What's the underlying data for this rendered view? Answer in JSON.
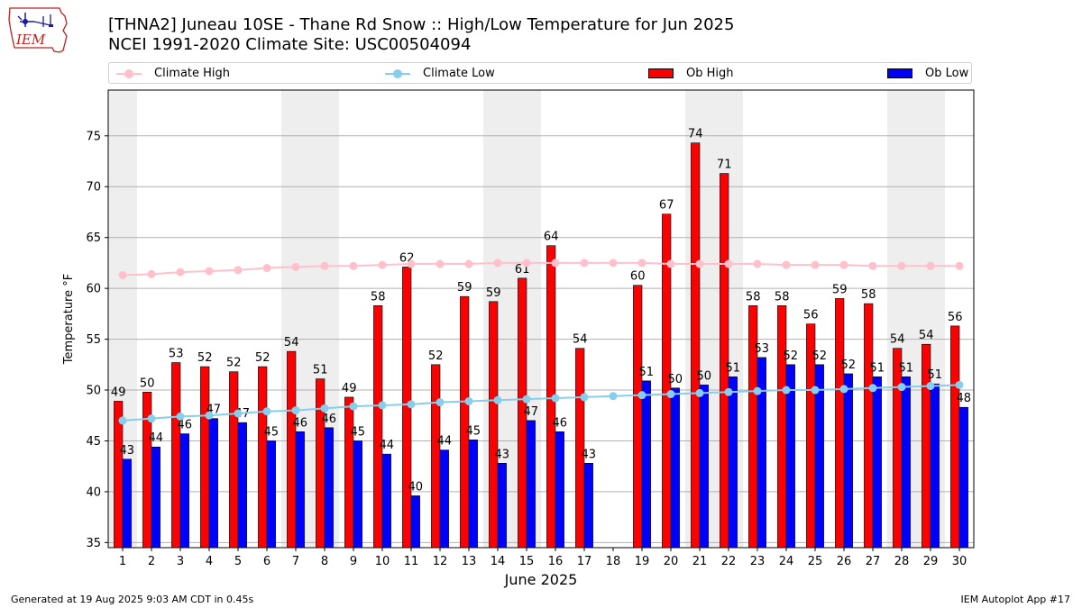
{
  "logo": {
    "text": "IEM"
  },
  "header": {
    "title_line1": "[THNA2] Juneau 10SE - Thane Rd Snow :: High/Low Temperature for Jun 2025",
    "title_line2": "NCEI 1991-2020 Climate Site: USC00504094"
  },
  "legend": {
    "climate_high": "Climate High",
    "climate_low": "Climate Low",
    "ob_high": "Ob High",
    "ob_low": "Ob Low"
  },
  "colors": {
    "ob_high": "#ff0000",
    "ob_low": "#0000ff",
    "climate_high": "#ffc0cb",
    "climate_low": "#87ceeb",
    "weekend_shade": "#eeeeee",
    "grid": "#b0b0b0"
  },
  "chart_data": {
    "type": "bar",
    "xlabel": "June 2025",
    "ylabel": "Temperature °F",
    "ylim": [
      34.5,
      79.5
    ],
    "yticks": [
      35,
      40,
      45,
      50,
      55,
      60,
      65,
      70,
      75
    ],
    "grid": true,
    "legend_position": "top",
    "categories": [
      "1",
      "2",
      "3",
      "4",
      "5",
      "6",
      "7",
      "8",
      "9",
      "10",
      "11",
      "12",
      "13",
      "14",
      "15",
      "16",
      "17",
      "18",
      "19",
      "20",
      "21",
      "22",
      "23",
      "24",
      "25",
      "26",
      "27",
      "28",
      "29",
      "30"
    ],
    "shaded_days": [
      1,
      7,
      8,
      14,
      15,
      21,
      22,
      28,
      29
    ],
    "series": [
      {
        "name": "Ob High",
        "kind": "bar",
        "values": [
          49,
          50,
          53,
          52,
          52,
          52,
          54,
          51,
          49,
          58,
          62,
          52,
          59,
          59,
          61,
          64,
          54,
          null,
          60,
          67,
          74,
          71,
          58,
          58,
          56,
          59,
          58,
          54,
          54,
          56
        ],
        "plotted": [
          48.9,
          49.8,
          52.7,
          52.3,
          51.8,
          52.3,
          53.8,
          51.1,
          49.3,
          58.3,
          62.1,
          52.5,
          59.2,
          58.7,
          61.0,
          64.2,
          54.1,
          null,
          60.3,
          67.3,
          74.3,
          71.3,
          58.3,
          58.3,
          56.5,
          59.0,
          58.5,
          54.1,
          54.5,
          56.3
        ]
      },
      {
        "name": "Ob Low",
        "kind": "bar",
        "values": [
          43,
          44,
          46,
          47,
          47,
          45,
          46,
          46,
          45,
          44,
          40,
          44,
          45,
          43,
          47,
          46,
          43,
          null,
          51,
          50,
          50,
          51,
          53,
          52,
          52,
          52,
          51,
          51,
          51,
          48
        ],
        "plotted": [
          43.2,
          44.4,
          45.7,
          47.2,
          46.8,
          45.0,
          45.9,
          46.3,
          45.0,
          43.7,
          39.6,
          44.1,
          45.1,
          42.8,
          47.0,
          45.9,
          42.8,
          null,
          50.9,
          50.2,
          50.5,
          51.3,
          53.2,
          52.5,
          52.5,
          51.6,
          51.3,
          51.3,
          50.6,
          48.3
        ]
      },
      {
        "name": "Climate High",
        "kind": "line",
        "values": [
          61.3,
          61.4,
          61.6,
          61.7,
          61.8,
          62.0,
          62.1,
          62.2,
          62.2,
          62.3,
          62.4,
          62.4,
          62.4,
          62.5,
          62.5,
          62.5,
          62.5,
          62.5,
          62.5,
          62.4,
          62.4,
          62.4,
          62.4,
          62.3,
          62.3,
          62.3,
          62.2,
          62.2,
          62.2,
          62.2
        ]
      },
      {
        "name": "Climate Low",
        "kind": "line",
        "values": [
          47.0,
          47.2,
          47.4,
          47.5,
          47.7,
          47.9,
          48.0,
          48.2,
          48.4,
          48.5,
          48.6,
          48.8,
          48.9,
          49.0,
          49.1,
          49.2,
          49.3,
          49.4,
          49.5,
          49.6,
          49.7,
          49.8,
          49.9,
          50.0,
          50.0,
          50.1,
          50.2,
          50.3,
          50.4,
          50.5
        ]
      }
    ]
  },
  "footer": {
    "left": "Generated at 19 Aug 2025 9:03 AM CDT in 0.45s",
    "right": "IEM Autoplot App #17"
  }
}
